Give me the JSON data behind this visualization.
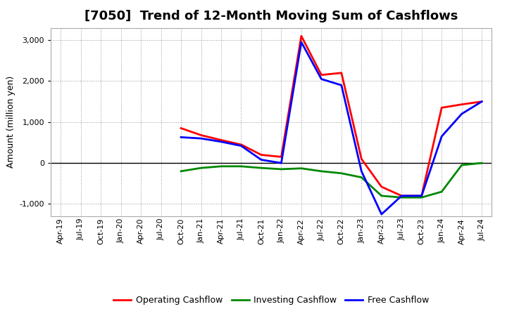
{
  "title": "[7050]  Trend of 12-Month Moving Sum of Cashflows",
  "ylabel": "Amount (million yen)",
  "background_color": "#ffffff",
  "grid_color": "#999999",
  "x_labels": [
    "Apr-19",
    "Jul-19",
    "Oct-19",
    "Jan-20",
    "Apr-20",
    "Jul-20",
    "Oct-20",
    "Jan-21",
    "Apr-21",
    "Jul-21",
    "Oct-21",
    "Jan-22",
    "Apr-22",
    "Jul-22",
    "Oct-22",
    "Jan-23",
    "Apr-23",
    "Jul-23",
    "Oct-23",
    "Jan-24",
    "Apr-24",
    "Jul-24"
  ],
  "operating": [
    null,
    null,
    null,
    null,
    null,
    null,
    850,
    680,
    560,
    450,
    200,
    150,
    3100,
    2150,
    2200,
    100,
    -580,
    -800,
    -800,
    1350,
    1430,
    1500
  ],
  "investing": [
    null,
    null,
    null,
    null,
    null,
    null,
    -200,
    -120,
    -80,
    -80,
    -120,
    -150,
    -130,
    -200,
    -250,
    -350,
    -800,
    -840,
    -840,
    -700,
    -50,
    0
  ],
  "free": [
    null,
    null,
    null,
    null,
    null,
    null,
    630,
    600,
    520,
    420,
    80,
    0,
    2950,
    2050,
    1900,
    -200,
    -1250,
    -800,
    -800,
    650,
    1200,
    1500
  ],
  "ylim": [
    -1300,
    3300
  ],
  "yticks": [
    -1000,
    0,
    1000,
    2000,
    3000
  ],
  "operating_color": "#ff0000",
  "investing_color": "#008800",
  "free_color": "#0000ff",
  "line_width": 2.0,
  "title_fontsize": 13,
  "tick_fontsize": 8,
  "ylabel_fontsize": 9,
  "legend_labels": [
    "Operating Cashflow",
    "Investing Cashflow",
    "Free Cashflow"
  ]
}
